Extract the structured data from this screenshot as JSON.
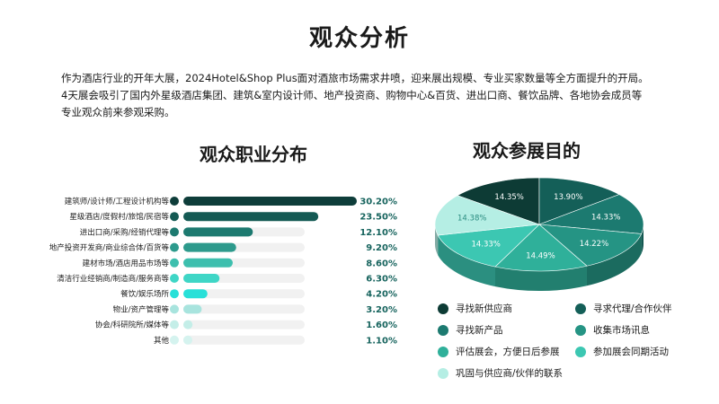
{
  "page": {
    "title": "观众分析",
    "intro": [
      "作为酒店行业的开年大展，2024Hotel&Shop Plus面对酒旅市场需求井喷，迎来展出规模、专业买家数量等全方面提升的开局。",
      "4天展会吸引了国内外星级酒店集团、建筑&室内设计师、地产投资商、购物中心&百货、进出口商、餐饮品牌、各地协会成员等",
      "专业观众前来参观采购。"
    ]
  },
  "chart_data": [
    {
      "type": "bar",
      "orientation": "horizontal",
      "title": "观众职业分布",
      "categories": [
        "建筑师/设计师/工程设计机构等",
        "星级酒店/度假村/旅馆/民宿等",
        "进出口商/采购/经销代理等",
        "地产投资开发商/商业综合体/百货等",
        "建材市场/酒店用品市场等",
        "清洁行业经销商/制造商/服务商等",
        "餐饮/娱乐场所",
        "物业/资产管理等",
        "协会/科研院所/媒体等",
        "其他"
      ],
      "values": [
        30.2,
        23.5,
        12.1,
        9.2,
        8.6,
        6.3,
        4.2,
        3.2,
        1.6,
        1.1
      ],
      "value_labels": [
        "30.20%",
        "23.50%",
        "12.10%",
        "9.20%",
        "8.60%",
        "6.30%",
        "4.20%",
        "3.20%",
        "1.60%",
        "1.10%"
      ],
      "xlim": [
        0,
        30.2
      ],
      "colors": [
        "#0e3d3a",
        "#145a54",
        "#1d7a70",
        "#2d9a8c",
        "#3dbfae",
        "#3fd6c6",
        "#28e0d8",
        "#a8e4de",
        "#c4eee8",
        "#d5f3ef"
      ],
      "track_color": "#f1f1f1",
      "label_color": "#17645e"
    },
    {
      "type": "pie",
      "style": "3d",
      "title": "观众参展目的",
      "labels": [
        "寻找新供应商",
        "寻求代理/合作伙伴",
        "寻找新产品",
        "收集市场讯息",
        "评估展会，方便日后参展",
        "参加展会同期活动",
        "巩固与供应商/伙伴的联系"
      ],
      "values": [
        14.35,
        13.9,
        14.33,
        14.22,
        14.49,
        14.33,
        14.38
      ],
      "value_labels": [
        "14.35%",
        "13.90%",
        "14.33%",
        "14.22%",
        "14.49%",
        "14.33%",
        "14.38%"
      ],
      "colors": [
        "#0d3b35",
        "#145f58",
        "#1c7a70",
        "#259484",
        "#2fb09a",
        "#3cc7b2",
        "#b5eee4"
      ],
      "legend_position": "bottom"
    }
  ]
}
